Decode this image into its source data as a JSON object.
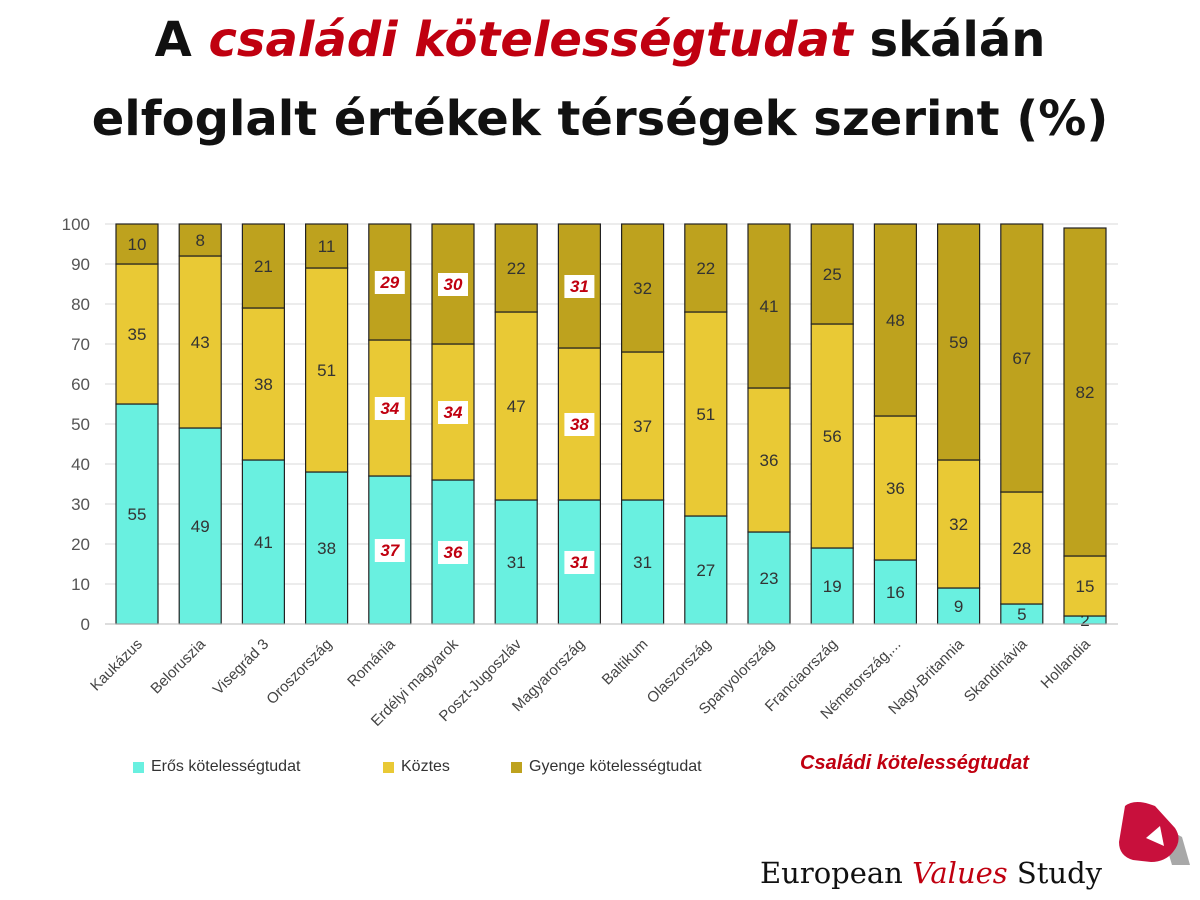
{
  "title": {
    "prefix": "A ",
    "highlight": "családi kötelességtudat",
    "suffix": " skálán",
    "line2": "elfoglalt értékek térségek szerint (%)"
  },
  "colors": {
    "strong": "#69F0E0",
    "mid": "#E9C935",
    "weak": "#BEA21E",
    "highlight": "#C00010"
  },
  "chart_data": {
    "type": "bar",
    "stacked": true,
    "ylim": [
      0,
      100
    ],
    "yticks": [
      0,
      10,
      20,
      30,
      40,
      50,
      60,
      70,
      80,
      90,
      100
    ],
    "grid": true,
    "legend_position": "bottom",
    "categories": [
      "Kaukázus",
      "Beloruszia",
      "Visegrád 3",
      "Oroszország",
      "Románia",
      "Erdélyi magyarok",
      "Poszt-Jugoszláv",
      "Magyarország",
      "Baltikum",
      "Olaszország",
      "Spanyolország",
      "Franciaország",
      "Németország,...",
      "Nagy-Britannia",
      "Skandinávia",
      "Hollandia"
    ],
    "highlighted": [
      "Románia",
      "Erdélyi magyarok",
      "Magyarország"
    ],
    "series": [
      {
        "name": "Erős kötelességtudat",
        "values": [
          55,
          49,
          41,
          38,
          37,
          36,
          31,
          31,
          31,
          27,
          23,
          19,
          16,
          9,
          5,
          2
        ]
      },
      {
        "name": "Köztes",
        "values": [
          35,
          43,
          38,
          51,
          34,
          34,
          47,
          38,
          37,
          51,
          36,
          56,
          36,
          32,
          28,
          15
        ]
      },
      {
        "name": "Gyenge kötelességtudat",
        "values": [
          10,
          8,
          21,
          11,
          29,
          30,
          22,
          31,
          32,
          22,
          41,
          25,
          48,
          59,
          67,
          82
        ]
      }
    ],
    "annotation": "Családi kötelességtudat"
  },
  "footer": {
    "brand_a": "European ",
    "brand_b": "Values",
    "brand_c": " Study"
  }
}
